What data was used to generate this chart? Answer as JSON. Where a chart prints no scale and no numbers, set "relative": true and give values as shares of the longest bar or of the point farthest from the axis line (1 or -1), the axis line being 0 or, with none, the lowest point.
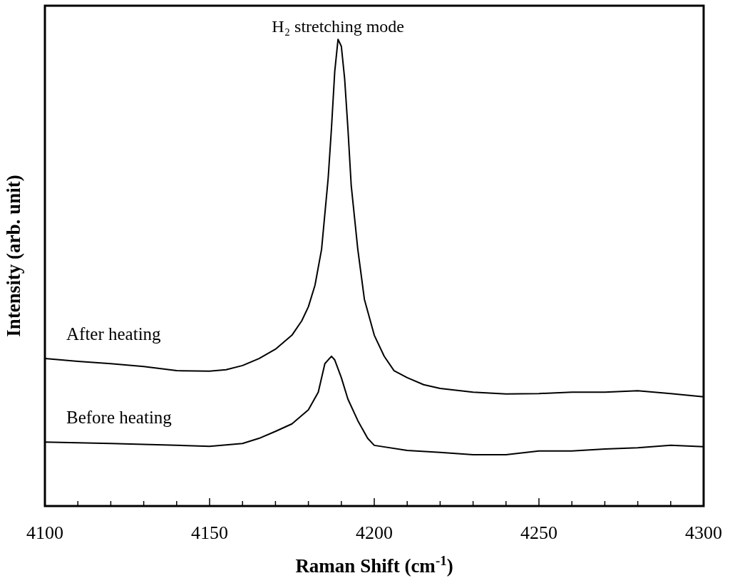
{
  "chart_data": {
    "type": "line",
    "relative": true,
    "xlabel": "Raman Shift (cm$^{-1}$)",
    "ylabel": "Intensity (arb. unit)",
    "annotations": [
      {
        "text": "H₂ stretching mode",
        "x": 4189,
        "y": 1
      }
    ],
    "xlim": [
      4100,
      4300
    ],
    "xticks": [
      4100,
      {
        "value": 4110,
        "label": null
      },
      {
        "value": 4120,
        "label": null
      },
      {
        "value": 4130,
        "label": null
      },
      {
        "value": 4140,
        "label": null
      },
      4150,
      {
        "value": 4160,
        "label": null
      },
      {
        "value": 4170,
        "label": null
      },
      {
        "value": 4180,
        "label": null
      },
      {
        "value": 4190,
        "label": null
      },
      4200,
      {
        "value": 4210,
        "label": null
      },
      {
        "value": 4220,
        "label": null
      },
      {
        "value": 4230,
        "label": null
      },
      {
        "value": 4240,
        "label": null
      },
      4250,
      {
        "value": 4260,
        "label": null
      },
      {
        "value": 4270,
        "label": null
      },
      {
        "value": 4280,
        "label": null
      },
      {
        "value": 4290,
        "label": null
      },
      4300
    ],
    "grid": false,
    "legend": false,
    "series": [
      {
        "name": "After heating",
        "color": "#000000",
        "x": [
          4100,
          4110,
          4120,
          4130,
          4140,
          4150,
          4155,
          4160,
          4165,
          4170,
          4175,
          4178,
          4180,
          4182,
          4184,
          4186,
          4187,
          4188,
          4189,
          4190,
          4191,
          4192,
          4193,
          4195,
          4197,
          4200,
          4203,
          4206,
          4210,
          4215,
          4220,
          4230,
          4240,
          4250,
          4260,
          4270,
          4280,
          4290,
          4300
        ],
        "values": [
          0.316,
          0.31,
          0.305,
          0.299,
          0.29,
          0.289,
          0.292,
          0.301,
          0.316,
          0.336,
          0.366,
          0.397,
          0.427,
          0.473,
          0.55,
          0.702,
          0.809,
          0.931,
          1,
          0.985,
          0.916,
          0.809,
          0.687,
          0.55,
          0.443,
          0.366,
          0.321,
          0.29,
          0.275,
          0.26,
          0.252,
          0.244,
          0.24,
          0.241,
          0.244,
          0.244,
          0.247,
          0.241,
          0.234
        ]
      },
      {
        "name": "Before heating",
        "color": "#000000",
        "x": [
          4100,
          4120,
          4140,
          4150,
          4160,
          4165,
          4170,
          4175,
          4180,
          4183,
          4185,
          4187,
          4188,
          4190,
          4192,
          4195,
          4198,
          4200,
          4210,
          4220,
          4230,
          4240,
          4250,
          4260,
          4270,
          4280,
          4290,
          4300
        ],
        "values": [
          0.137,
          0.134,
          0.13,
          0.128,
          0.134,
          0.145,
          0.16,
          0.176,
          0.206,
          0.244,
          0.305,
          0.321,
          0.313,
          0.275,
          0.229,
          0.183,
          0.145,
          0.13,
          0.119,
          0.115,
          0.11,
          0.11,
          0.118,
          0.118,
          0.122,
          0.125,
          0.13,
          0.127
        ]
      }
    ]
  }
}
